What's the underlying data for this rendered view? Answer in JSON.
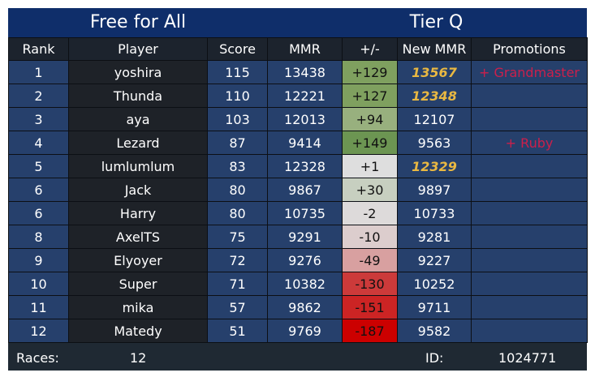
{
  "header": {
    "left_title": "Free for All",
    "right_title": "Tier Q"
  },
  "columns": [
    "Rank",
    "Player",
    "Score",
    "MMR",
    "+/-",
    "New MMR",
    "Promotions"
  ],
  "rows": [
    {
      "rank": "1",
      "player": "yoshira",
      "score": "115",
      "mmr": "13438",
      "delta": "+129",
      "new_mmr": "13567",
      "new_mmr_highlight": true,
      "promotion": "+ Grandmaster",
      "delta_color": "#7fa05f"
    },
    {
      "rank": "2",
      "player": "Thunda",
      "score": "110",
      "mmr": "12221",
      "delta": "+127",
      "new_mmr": "12348",
      "new_mmr_highlight": true,
      "promotion": "",
      "delta_color": "#7fa05f"
    },
    {
      "rank": "3",
      "player": "aya",
      "score": "103",
      "mmr": "12013",
      "delta": "+94",
      "new_mmr": "12107",
      "new_mmr_highlight": false,
      "promotion": "",
      "delta_color": "#98b07e"
    },
    {
      "rank": "4",
      "player": "Lezard",
      "score": "87",
      "mmr": "9414",
      "delta": "+149",
      "new_mmr": "9563",
      "new_mmr_highlight": false,
      "promotion": "+ Ruby",
      "delta_color": "#6c9552"
    },
    {
      "rank": "5",
      "player": "lumlumlum",
      "score": "83",
      "mmr": "12328",
      "delta": "+1",
      "new_mmr": "12329",
      "new_mmr_highlight": true,
      "promotion": "",
      "delta_color": "#dedede"
    },
    {
      "rank": "6",
      "player": "Jack",
      "score": "80",
      "mmr": "9867",
      "delta": "+30",
      "new_mmr": "9897",
      "new_mmr_highlight": false,
      "promotion": "",
      "delta_color": "#c7cfc0"
    },
    {
      "rank": "6",
      "player": "Harry",
      "score": "80",
      "mmr": "10735",
      "delta": "-2",
      "new_mmr": "10733",
      "new_mmr_highlight": false,
      "promotion": "",
      "delta_color": "#dddada"
    },
    {
      "rank": "8",
      "player": "AxelTS",
      "score": "75",
      "mmr": "9291",
      "delta": "-10",
      "new_mmr": "9281",
      "new_mmr_highlight": false,
      "promotion": "",
      "delta_color": "#dccdcd"
    },
    {
      "rank": "9",
      "player": "Elyoyer",
      "score": "72",
      "mmr": "9276",
      "delta": "-49",
      "new_mmr": "9227",
      "new_mmr_highlight": false,
      "promotion": "",
      "delta_color": "#d8a0a0"
    },
    {
      "rank": "10",
      "player": "Super",
      "score": "71",
      "mmr": "10382",
      "delta": "-130",
      "new_mmr": "10252",
      "new_mmr_highlight": false,
      "promotion": "",
      "delta_color": "#cc3a3a"
    },
    {
      "rank": "11",
      "player": "mika",
      "score": "57",
      "mmr": "9862",
      "delta": "-151",
      "new_mmr": "9711",
      "new_mmr_highlight": false,
      "promotion": "",
      "delta_color": "#cc2424"
    },
    {
      "rank": "12",
      "player": "Matedy",
      "score": "51",
      "mmr": "9769",
      "delta": "-187",
      "new_mmr": "9582",
      "new_mmr_highlight": false,
      "promotion": "",
      "delta_color": "#cc0000"
    }
  ],
  "footer": {
    "races_label": "Races:",
    "races_value": "12",
    "id_label": "ID:",
    "id_value": "1024771"
  },
  "colors": {
    "header_bg": "#0f2e6a",
    "row_bg": "#26406c",
    "player_bg": "#1e2228",
    "highlight_text": "#e9b842",
    "promotion_text": "#cc1f4b"
  }
}
